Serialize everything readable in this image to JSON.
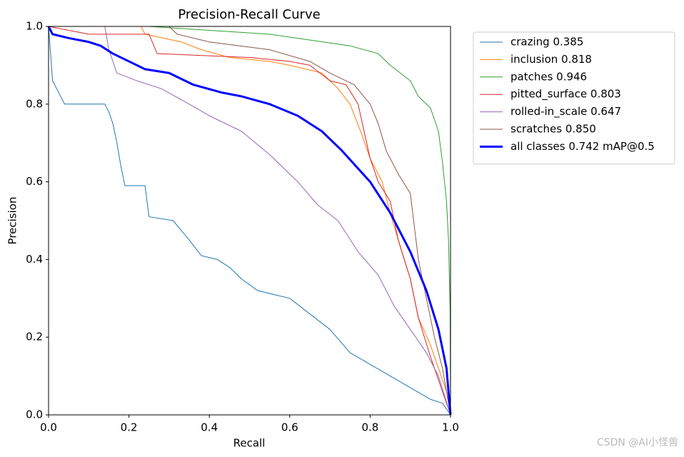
{
  "chart_data": {
    "type": "line",
    "title": "Precision-Recall Curve",
    "xlabel": "Recall",
    "ylabel": "Precision",
    "xlim": [
      0,
      1
    ],
    "ylim": [
      0,
      1
    ],
    "xticks": [
      {
        "value": 0,
        "label": "0.0"
      },
      {
        "value": 0.2,
        "label": "0.2"
      },
      {
        "value": 0.4,
        "label": "0.4"
      },
      {
        "value": 0.6,
        "label": "0.6"
      },
      {
        "value": 0.8,
        "label": "0.8"
      },
      {
        "value": 1,
        "label": "1.0"
      }
    ],
    "yticks": [
      {
        "value": 0,
        "label": "0.0"
      },
      {
        "value": 0.2,
        "label": "0.2"
      },
      {
        "value": 0.4,
        "label": "0.4"
      },
      {
        "value": 0.6,
        "label": "0.6"
      },
      {
        "value": 0.8,
        "label": "0.8"
      },
      {
        "value": 1,
        "label": "1.0"
      }
    ],
    "legend": "outside-upper-right",
    "series": [
      {
        "name": "crazing 0.385",
        "color": "#1f77b4",
        "line_width": 1,
        "x": [
          0,
          0.01,
          0.04,
          0.14,
          0.15,
          0.16,
          0.17,
          0.18,
          0.19,
          0.24,
          0.245,
          0.25,
          0.31,
          0.35,
          0.38,
          0.42,
          0.45,
          0.48,
          0.52,
          0.6,
          0.65,
          0.7,
          0.75,
          0.8,
          0.85,
          0.9,
          0.95,
          0.98,
          1.0
        ],
        "values": [
          1.0,
          0.86,
          0.8,
          0.8,
          0.78,
          0.75,
          0.7,
          0.64,
          0.59,
          0.59,
          0.55,
          0.51,
          0.5,
          0.45,
          0.41,
          0.4,
          0.38,
          0.35,
          0.32,
          0.3,
          0.26,
          0.22,
          0.16,
          0.13,
          0.1,
          0.07,
          0.04,
          0.03,
          0.0
        ]
      },
      {
        "name": "inclusion 0.818",
        "color": "#ff7f0e",
        "line_width": 1,
        "x": [
          0,
          0.23,
          0.24,
          0.33,
          0.38,
          0.45,
          0.55,
          0.6,
          0.68,
          0.72,
          0.75,
          0.78,
          0.8,
          0.83,
          0.85,
          0.87,
          0.9,
          0.92,
          0.95,
          0.97,
          0.99,
          1.0
        ],
        "values": [
          1.0,
          1.0,
          0.98,
          0.96,
          0.94,
          0.92,
          0.91,
          0.9,
          0.88,
          0.84,
          0.8,
          0.72,
          0.66,
          0.6,
          0.52,
          0.45,
          0.35,
          0.25,
          0.18,
          0.12,
          0.06,
          0.0
        ]
      },
      {
        "name": "patches 0.946",
        "color": "#2ca02c",
        "line_width": 1,
        "x": [
          0,
          0.25,
          0.4,
          0.55,
          0.75,
          0.82,
          0.85,
          0.9,
          0.92,
          0.95,
          0.97,
          0.98,
          0.99,
          0.995,
          0.999,
          1.0
        ],
        "values": [
          1.0,
          1.0,
          0.99,
          0.98,
          0.95,
          0.93,
          0.9,
          0.86,
          0.82,
          0.79,
          0.73,
          0.65,
          0.55,
          0.45,
          0.27,
          0.0
        ]
      },
      {
        "name": "pitted_surface 0.803",
        "color": "#d62728",
        "line_width": 1,
        "x": [
          0,
          0.1,
          0.25,
          0.27,
          0.5,
          0.6,
          0.65,
          0.7,
          0.74,
          0.77,
          0.8,
          0.82,
          0.85,
          0.87,
          0.9,
          0.92,
          0.95,
          0.98,
          1.0
        ],
        "values": [
          1.0,
          0.98,
          0.98,
          0.93,
          0.92,
          0.91,
          0.9,
          0.86,
          0.85,
          0.8,
          0.66,
          0.6,
          0.55,
          0.45,
          0.35,
          0.25,
          0.15,
          0.06,
          0.0
        ]
      },
      {
        "name": "rolled-in_scale 0.647",
        "color": "#9467bd",
        "line_width": 1,
        "x": [
          0,
          0.14,
          0.15,
          0.17,
          0.22,
          0.28,
          0.35,
          0.4,
          0.48,
          0.55,
          0.62,
          0.67,
          0.72,
          0.77,
          0.82,
          0.86,
          0.9,
          0.94,
          0.97,
          1.0
        ],
        "values": [
          1.0,
          1.0,
          0.94,
          0.88,
          0.86,
          0.84,
          0.8,
          0.77,
          0.73,
          0.67,
          0.6,
          0.54,
          0.5,
          0.42,
          0.36,
          0.28,
          0.22,
          0.16,
          0.1,
          0.0
        ]
      },
      {
        "name": "scratches 0.850",
        "color": "#8c564b",
        "line_width": 1,
        "x": [
          0,
          0.3,
          0.32,
          0.4,
          0.55,
          0.65,
          0.7,
          0.76,
          0.8,
          0.82,
          0.84,
          0.87,
          0.9,
          0.92,
          0.94,
          0.96,
          0.98,
          1.0
        ],
        "values": [
          1.0,
          1.0,
          0.98,
          0.96,
          0.94,
          0.91,
          0.88,
          0.85,
          0.8,
          0.75,
          0.68,
          0.62,
          0.57,
          0.4,
          0.3,
          0.2,
          0.12,
          0.0
        ]
      },
      {
        "name": "all classes 0.742 mAP@0.5",
        "color": "#0000ff",
        "line_width": 3,
        "x": [
          0,
          0.01,
          0.05,
          0.1,
          0.13,
          0.16,
          0.2,
          0.24,
          0.3,
          0.36,
          0.43,
          0.48,
          0.55,
          0.62,
          0.68,
          0.73,
          0.8,
          0.85,
          0.9,
          0.94,
          0.97,
          0.99,
          1.0
        ],
        "values": [
          1.0,
          0.98,
          0.97,
          0.96,
          0.95,
          0.93,
          0.91,
          0.89,
          0.88,
          0.85,
          0.83,
          0.82,
          0.8,
          0.77,
          0.73,
          0.68,
          0.6,
          0.52,
          0.42,
          0.32,
          0.22,
          0.12,
          0.0
        ]
      }
    ]
  },
  "watermark": "CSDN @AI小怪兽"
}
